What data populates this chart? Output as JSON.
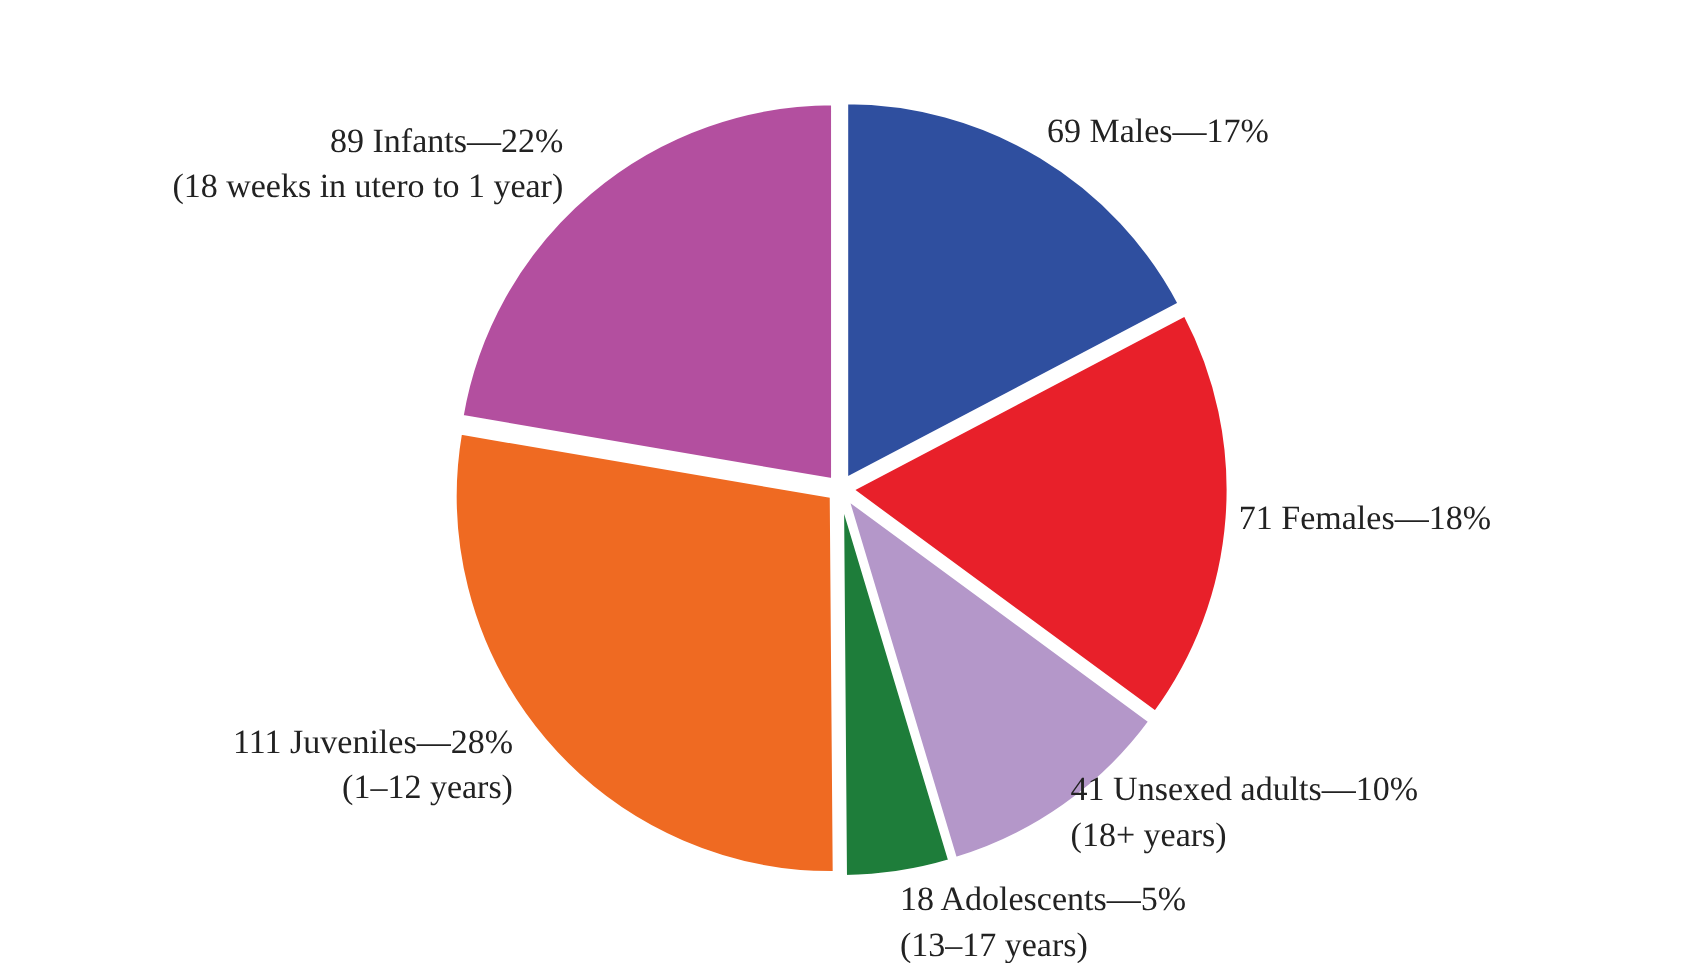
{
  "chart_data": {
    "type": "pie",
    "categories": [
      "69 Males—17%",
      "71 Females—18%",
      "41 Unsexed adults—10%\n(18+ years)",
      "18 Adolescents—5%\n(13–17 years)",
      "111 Juveniles—28%\n(1–12 years)",
      "89 Infants—22%\n(18 weeks in utero to 1 year)"
    ],
    "values": [
      69,
      71,
      41,
      18,
      111,
      89
    ],
    "colors": [
      "#2f4f9f",
      "#e8202a",
      "#b497c9",
      "#1e7d3a",
      "#ef6a22",
      "#b34f9f"
    ]
  }
}
